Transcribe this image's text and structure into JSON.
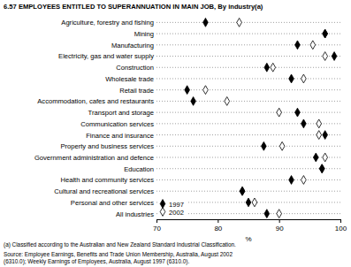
{
  "chart_data": {
    "type": "scatter",
    "orientation": "horizontal",
    "title": "6.57 EMPLOYEES ENTITLED TO SUPERANNUATION IN MAIN JOB, By industry(a)",
    "x_label": "%",
    "categories": [
      "Agriculture, forestry and fishing",
      "Mining",
      "Manufacturing",
      "Electricity, gas and water supply",
      "Construction",
      "Wholesale trade",
      "Retail trade",
      "Accommodation, cafes and restaurants",
      "Transport and storage",
      "Communication services",
      "Finance and insurance",
      "Property and business services",
      "Government administration and defence",
      "Education",
      "Health and community services",
      "Cultural and recreational services",
      "Personal and other services",
      "All industries"
    ],
    "series": [
      {
        "name": "1997",
        "color": "#000000",
        "marker": "filled-diamond",
        "values": [
          78.0,
          97.5,
          93.0,
          99.0,
          88.0,
          92.0,
          75.0,
          76.0,
          93.0,
          94.0,
          97.5,
          87.5,
          96.0,
          97.0,
          92.0,
          84.0,
          85.0,
          88.0
        ]
      },
      {
        "name": "2002",
        "color": "#000000",
        "marker": "open-diamond",
        "values": [
          83.5,
          97.5,
          95.5,
          97.5,
          89.0,
          94.0,
          78.0,
          81.5,
          90.0,
          96.5,
          96.5,
          90.5,
          97.5,
          97.0,
          94.0,
          84.0,
          86.0,
          90.0
        ]
      }
    ],
    "xlim": [
      70,
      100
    ],
    "xticks": [
      70,
      80,
      90,
      100
    ],
    "grid": true,
    "legend": "bottom left",
    "footnote": "(a) Classified according to the Australian and New Zealand Standard Industrial Classification.",
    "source": [
      "Source: Employee Earnings, Benefits and Trade Union Membership, Australia, August 2002",
      "(6310.0); Weekly Earnings of Employees, Australia, August 1997 (6310.0)."
    ]
  }
}
